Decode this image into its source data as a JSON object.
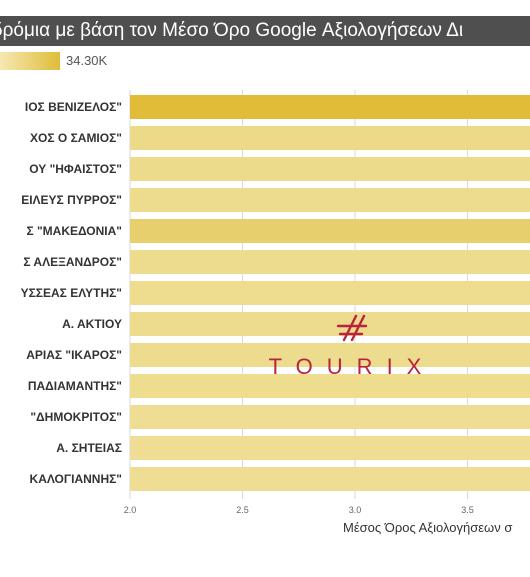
{
  "header": {
    "title": "δρόμια με βάση τον Μέσο Όρο Google Αξιολογήσεων Δι",
    "legend_max_label": "34.30K"
  },
  "watermark": {
    "text": "TOURIX",
    "icon": "tourix-logo-icon"
  },
  "colors": {
    "bar_light": "#efdf97",
    "bar_dark": "#e0bc39",
    "grid": "#d9d9d9",
    "title_bg": "#4f4f4f",
    "logo": "#b7243e"
  },
  "chart_data": {
    "type": "bar",
    "orientation": "horizontal",
    "title": "δρόμια με βάση τον Μέσο Όρο Google Αξιολογήσεων Δι",
    "xlabel": "Μέσος Όρος Αξιολογήσεων σ",
    "x_ticks": [
      "2.0",
      "2.5",
      "3.0",
      "3.5"
    ],
    "xlim": [
      2.0,
      3.8
    ],
    "grid": true,
    "categories": [
      "ΙΟΣ ΒΕΝΙΖΕΛΟΣ\"",
      "ΧΟΣ Ο ΣΑΜΙΟΣ\"",
      "ΟΥ \"ΗΦΑΙΣΤΟΣ\"",
      "ΕΙΛΕΥΣ ΠΥΡΡΟΣ\"",
      "Σ \"ΜΑΚΕΔΟΝΙΑ\"",
      "Σ ΑΛΕΞΑΝΔΡΟΣ\"",
      "ΥΣΣΕΑΣ ΕΛΥΤΗΣ\"",
      "Α. ΑΚΤΙΟΥ",
      "ΑΡΙΑΣ \"ΙΚΑΡΟΣ\"",
      "ΠΑΔΙΑΜΑΝΤΗΣ\"",
      "\"ΔΗΜΟΚΡΙΤΟΣ\"",
      "Α. ΣΗΤΕΙΑΣ",
      "ΚΑΛΟΓΙΑΝΝΗΣ\""
    ],
    "series": [
      {
        "values": [
          3.8,
          3.8,
          3.8,
          3.8,
          3.8,
          3.8,
          3.8,
          3.8,
          3.8,
          3.8,
          3.8,
          3.8,
          3.8
        ],
        "color_intensity": [
          1.0,
          0.15,
          0.12,
          0.1,
          0.45,
          0.1,
          0.08,
          0.1,
          0.1,
          0.08,
          0.05,
          0.05,
          0.05
        ]
      }
    ],
    "legend": {
      "placement": "top-left",
      "max_label": "34.30K"
    }
  }
}
